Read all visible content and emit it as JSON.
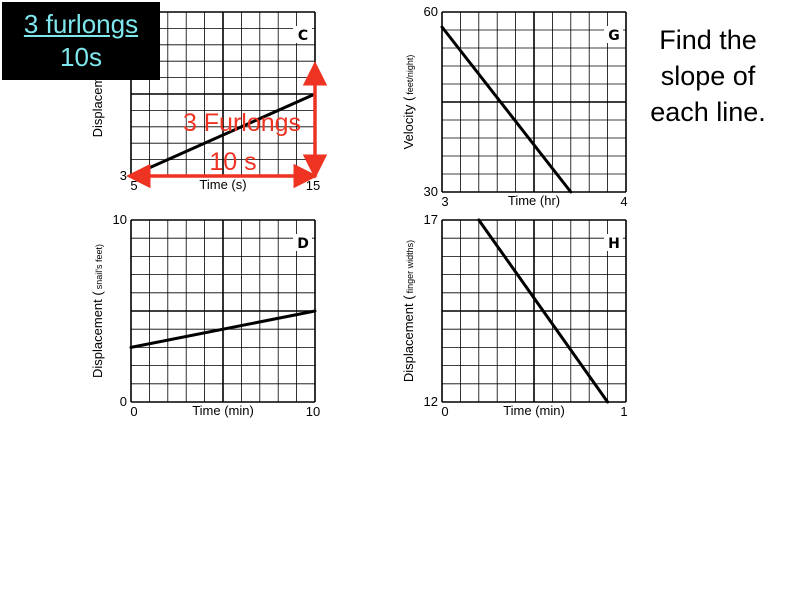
{
  "prompt": {
    "line1": "Find the",
    "line2": "slope of",
    "line3": "each line."
  },
  "answer_box": {
    "top": "3 furlongs",
    "bottom": "10s"
  },
  "colors": {
    "annotation": "#ee3322",
    "answer_text": "#7fe7ee",
    "answer_bg": "#000000",
    "grid": "#000000",
    "line": "#000000"
  },
  "annotation": {
    "rise_label": "3 Furlongs",
    "run_label": "10 s"
  },
  "chart_data": [
    {
      "id": "C",
      "type": "line",
      "badge": "C",
      "title": "",
      "xlabel": "Time (s)",
      "ylabel_main": "Displacement (",
      "ylabel_sub": "",
      "xlim": [
        5,
        15
      ],
      "ylim": [
        3,
        9
      ],
      "xticks": [
        "5",
        "15"
      ],
      "yticks": [
        "3",
        ""
      ],
      "grid": true,
      "x": [
        5,
        15
      ],
      "y": [
        3,
        6
      ]
    },
    {
      "id": "G",
      "type": "line",
      "badge": "G",
      "title": "",
      "xlabel": "Time (hr)",
      "ylabel_main": "Velocity (",
      "ylabel_sub": "feet/night)",
      "xlim": [
        3,
        4
      ],
      "ylim": [
        30,
        60
      ],
      "xticks": [
        "3",
        "4"
      ],
      "yticks": [
        "30",
        "60"
      ],
      "grid": true,
      "x": [
        3,
        3.7
      ],
      "y": [
        57.5,
        30
      ]
    },
    {
      "id": "D",
      "type": "line",
      "badge": "D",
      "title": "",
      "xlabel": "Time (min)",
      "ylabel_main": "Displacement (",
      "ylabel_sub": "snail's feet)",
      "xlim": [
        0,
        10
      ],
      "ylim": [
        0,
        10
      ],
      "xticks": [
        "0",
        "10"
      ],
      "yticks": [
        "0",
        "10"
      ],
      "grid": true,
      "x": [
        0,
        10
      ],
      "y": [
        3,
        5
      ]
    },
    {
      "id": "H",
      "type": "line",
      "badge": "H",
      "title": "",
      "xlabel": "Time (min)",
      "ylabel_main": "Displacement (",
      "ylabel_sub": "finger widths)",
      "xlim": [
        0,
        1
      ],
      "ylim": [
        12,
        17
      ],
      "xticks": [
        "0",
        "1"
      ],
      "yticks": [
        "12",
        "17"
      ],
      "grid": true,
      "x": [
        0.2,
        0.9
      ],
      "y": [
        17,
        12
      ]
    }
  ]
}
